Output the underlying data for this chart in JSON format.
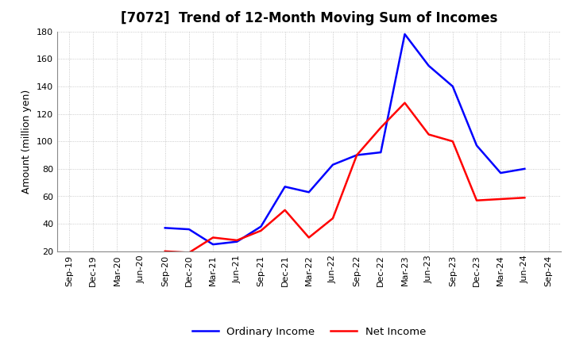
{
  "title": "[7072]  Trend of 12-Month Moving Sum of Incomes",
  "ylabel": "Amount (million yen)",
  "x_labels": [
    "Sep-19",
    "Dec-19",
    "Mar-20",
    "Jun-20",
    "Sep-20",
    "Dec-20",
    "Mar-21",
    "Jun-21",
    "Sep-21",
    "Dec-21",
    "Mar-22",
    "Jun-22",
    "Sep-22",
    "Dec-22",
    "Mar-23",
    "Jun-23",
    "Sep-23",
    "Dec-23",
    "Mar-24",
    "Jun-24",
    "Sep-24"
  ],
  "ordinary_income_x": [
    4,
    5,
    6,
    7,
    8,
    9,
    10,
    11,
    12,
    13,
    14,
    15,
    16,
    17,
    18,
    19
  ],
  "ordinary_income_y": [
    37,
    36,
    25,
    27,
    38,
    67,
    63,
    83,
    90,
    92,
    178,
    155,
    140,
    97,
    77,
    80
  ],
  "net_income_x": [
    4,
    5,
    6,
    7,
    8,
    9,
    10,
    11,
    12,
    13,
    14,
    15,
    16,
    17,
    18,
    19
  ],
  "net_income_y": [
    20,
    19,
    30,
    28,
    35,
    50,
    30,
    44,
    90,
    110,
    128,
    105,
    100,
    57,
    58,
    59
  ],
  "ordinary_income_color": "#0000ff",
  "net_income_color": "#ff0000",
  "ylim": [
    20,
    180
  ],
  "yticks": [
    20,
    40,
    60,
    80,
    100,
    120,
    140,
    160,
    180
  ],
  "background_color": "#ffffff",
  "grid_color": "#bbbbbb",
  "title_fontsize": 12,
  "tick_fontsize": 8,
  "ylabel_fontsize": 9,
  "legend_labels": [
    "Ordinary Income",
    "Net Income"
  ],
  "line_width": 1.8
}
